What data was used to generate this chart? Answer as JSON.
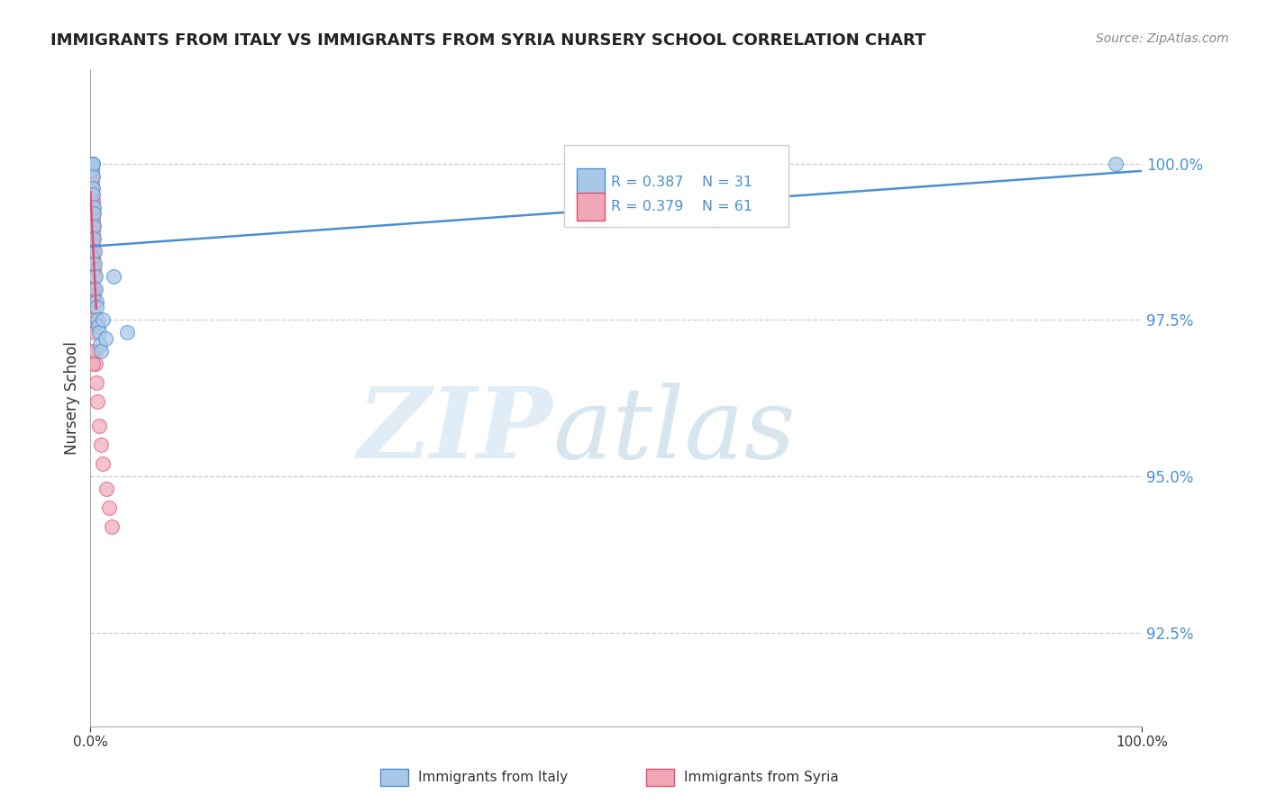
{
  "title": "IMMIGRANTS FROM ITALY VS IMMIGRANTS FROM SYRIA NURSERY SCHOOL CORRELATION CHART",
  "source": "Source: ZipAtlas.com",
  "ylabel": "Nursery School",
  "yticks": [
    92.5,
    95.0,
    97.5,
    100.0
  ],
  "ytick_labels": [
    "92.5%",
    "95.0%",
    "97.5%",
    "100.0%"
  ],
  "xlim": [
    0.0,
    100.0
  ],
  "ylim": [
    91.0,
    101.5
  ],
  "legend_italy": "Immigrants from Italy",
  "legend_syria": "Immigrants from Syria",
  "R_italy": "R = 0.387",
  "N_italy": "N = 31",
  "R_syria": "R = 0.379",
  "N_syria": "N = 61",
  "color_italy": "#a8c8e8",
  "color_syria": "#f0a8b8",
  "line_color_italy": "#4a90d0",
  "line_color_syria": "#e05070",
  "background_color": "#ffffff",
  "italy_x": [
    0.1,
    0.12,
    0.13,
    0.15,
    0.17,
    0.18,
    0.2,
    0.22,
    0.22,
    0.23,
    0.25,
    0.27,
    0.3,
    0.33,
    0.35,
    0.4,
    0.4,
    0.45,
    0.5,
    0.55,
    0.6,
    0.65,
    0.7,
    0.8,
    0.9,
    1.0,
    1.2,
    1.4,
    2.2,
    3.5,
    97.5
  ],
  "italy_y": [
    99.9,
    100.0,
    100.0,
    100.0,
    100.0,
    100.0,
    100.0,
    100.0,
    99.8,
    99.6,
    99.5,
    99.3,
    99.2,
    99.0,
    98.8,
    98.6,
    98.4,
    98.2,
    98.0,
    97.8,
    97.7,
    97.5,
    97.4,
    97.3,
    97.1,
    97.0,
    97.5,
    97.2,
    98.2,
    97.3,
    100.0
  ],
  "syria_x": [
    0.03,
    0.05,
    0.06,
    0.07,
    0.08,
    0.09,
    0.1,
    0.1,
    0.11,
    0.12,
    0.12,
    0.13,
    0.13,
    0.14,
    0.14,
    0.15,
    0.15,
    0.15,
    0.16,
    0.17,
    0.17,
    0.18,
    0.18,
    0.19,
    0.2,
    0.2,
    0.2,
    0.21,
    0.22,
    0.22,
    0.23,
    0.24,
    0.25,
    0.25,
    0.25,
    0.26,
    0.27,
    0.28,
    0.3,
    0.3,
    0.33,
    0.35,
    0.38,
    0.4,
    0.45,
    0.5,
    0.55,
    0.65,
    0.8,
    1.0,
    1.2,
    1.5,
    1.8,
    2.0,
    0.08,
    0.1,
    0.12,
    0.15,
    0.18,
    0.22,
    0.25
  ],
  "syria_y": [
    99.9,
    100.0,
    100.0,
    100.0,
    100.0,
    100.0,
    100.0,
    99.9,
    100.0,
    100.0,
    99.8,
    99.8,
    99.7,
    99.6,
    99.5,
    99.8,
    99.6,
    99.4,
    99.5,
    99.4,
    99.3,
    99.5,
    99.2,
    99.3,
    99.4,
    99.2,
    99.0,
    99.1,
    99.0,
    98.8,
    98.9,
    98.8,
    98.7,
    98.6,
    98.5,
    98.4,
    98.3,
    98.2,
    98.0,
    97.9,
    97.8,
    97.6,
    97.5,
    97.3,
    97.0,
    96.8,
    96.5,
    96.2,
    95.8,
    95.5,
    95.2,
    94.8,
    94.5,
    94.2,
    99.5,
    99.0,
    98.5,
    98.0,
    97.5,
    97.0,
    96.8
  ],
  "trendline_italy_x0": 0.0,
  "trendline_italy_x1": 100.0,
  "trendline_syria_x0": 0.0,
  "trendline_syria_x1": 0.55
}
